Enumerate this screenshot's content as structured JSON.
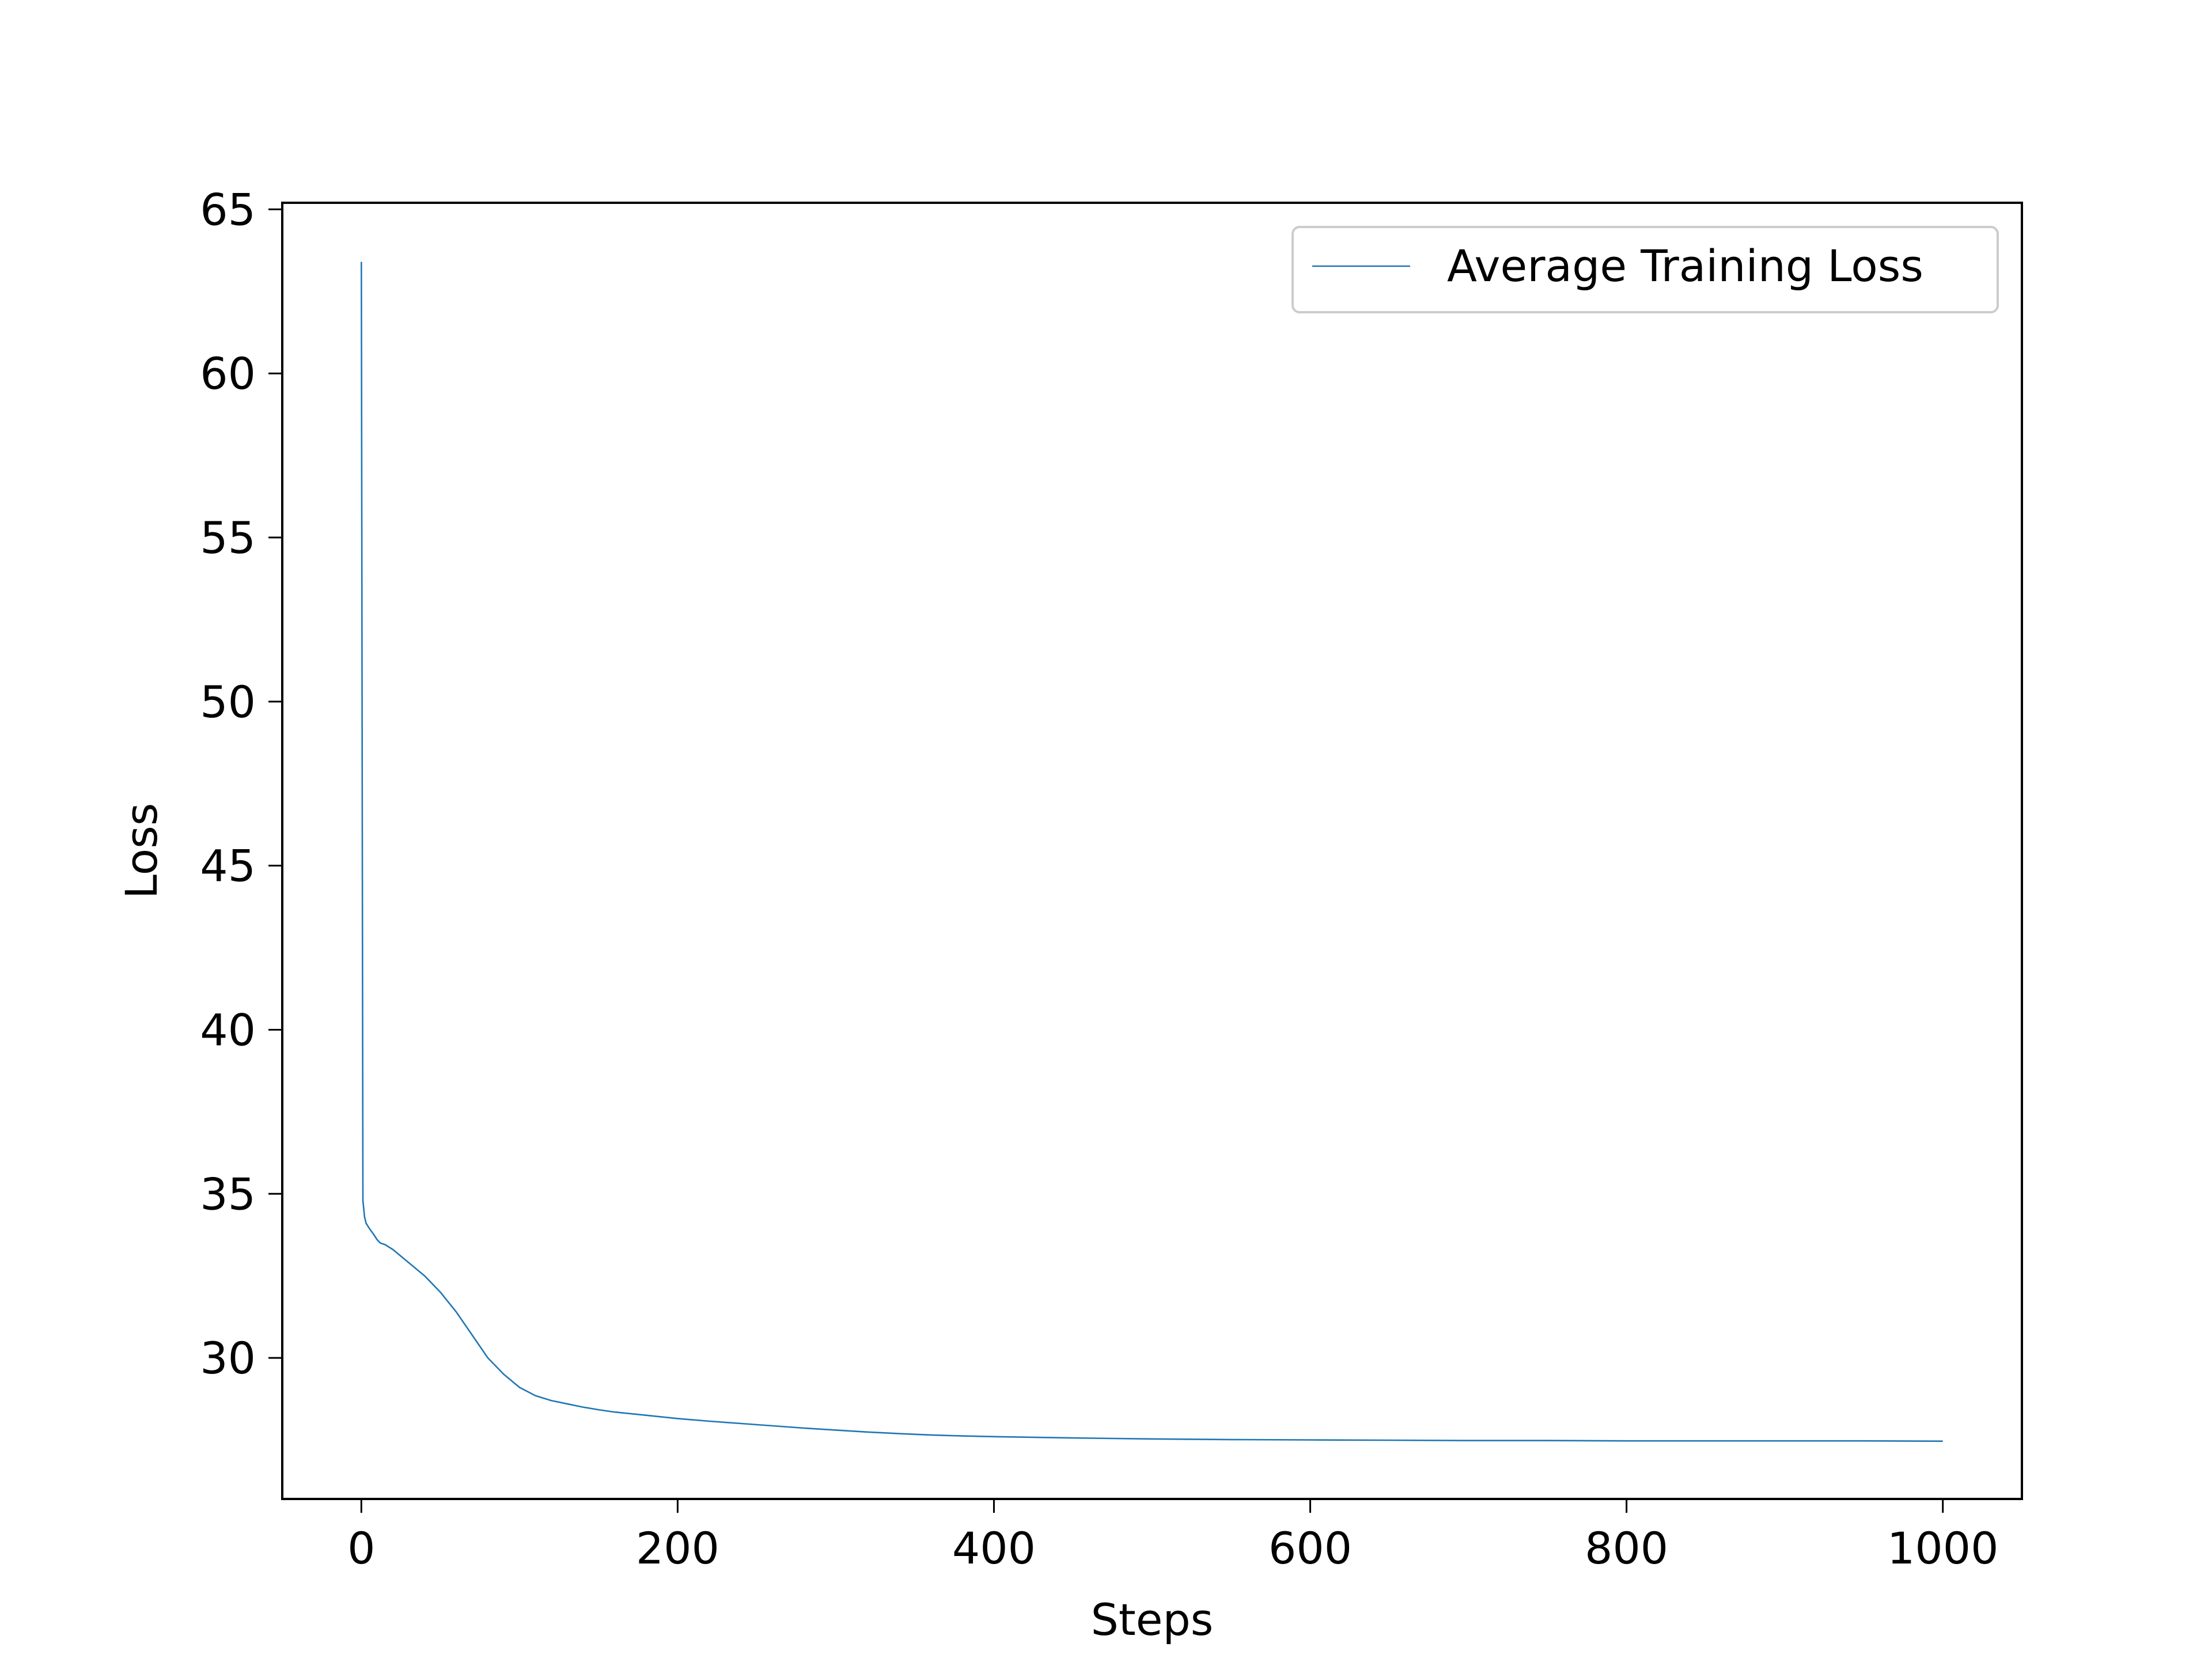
{
  "chart_data": {
    "type": "line",
    "title": "",
    "xlabel": "Steps",
    "ylabel": "Loss",
    "xlim": [
      -50,
      1050
    ],
    "ylim": [
      25.7,
      65.2
    ],
    "xticks": [
      0,
      200,
      400,
      600,
      800,
      1000
    ],
    "yticks": [
      30,
      35,
      40,
      45,
      50,
      55,
      60,
      65
    ],
    "grid": false,
    "legend": {
      "placement": "top-right",
      "entries": [
        "Average Training Loss"
      ]
    },
    "series": [
      {
        "name": "Average Training Loss",
        "color": "#1f77b4",
        "x": [
          0,
          1,
          2,
          3,
          5,
          8,
          10,
          12,
          15,
          20,
          25,
          30,
          40,
          50,
          60,
          70,
          80,
          90,
          100,
          110,
          120,
          130,
          140,
          150,
          160,
          180,
          200,
          220,
          240,
          260,
          280,
          300,
          320,
          340,
          360,
          380,
          400,
          450,
          500,
          550,
          600,
          650,
          700,
          750,
          800,
          850,
          900,
          950,
          1000
        ],
        "values": [
          63.4,
          34.8,
          34.3,
          34.1,
          33.95,
          33.75,
          33.6,
          33.5,
          33.45,
          33.3,
          33.1,
          32.9,
          32.5,
          32.0,
          31.4,
          30.7,
          30.0,
          29.5,
          29.1,
          28.85,
          28.7,
          28.6,
          28.5,
          28.42,
          28.35,
          28.25,
          28.15,
          28.07,
          28.0,
          27.93,
          27.86,
          27.8,
          27.74,
          27.69,
          27.65,
          27.62,
          27.6,
          27.56,
          27.53,
          27.51,
          27.5,
          27.49,
          27.48,
          27.48,
          27.47,
          27.47,
          27.47,
          27.47,
          27.46
        ]
      }
    ]
  }
}
